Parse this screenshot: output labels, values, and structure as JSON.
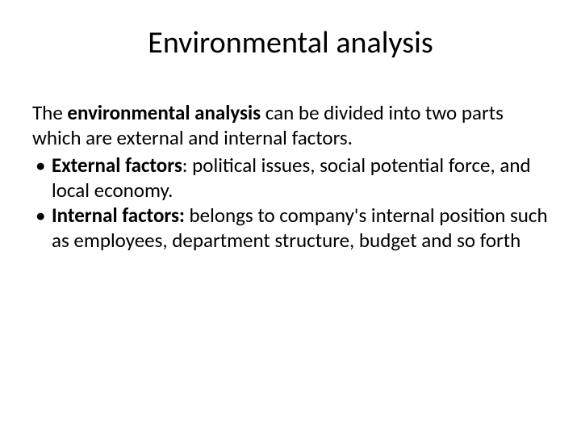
{
  "slide": {
    "title": "Environmental analysis",
    "intro_prefix": "The ",
    "intro_bold": "environmental analysis",
    "intro_suffix": " can be divided into two parts which are external and internal factors.",
    "bullets": [
      {
        "label": "External factors",
        "separator": ": ",
        "text": "political issues, social potential force, and local economy."
      },
      {
        "label": "Internal factors:",
        "separator": " ",
        "text": "belongs to company's internal position such as employees, department structure, budget and so forth"
      }
    ]
  },
  "style": {
    "background_color": "#ffffff",
    "text_color": "#000000",
    "title_fontsize": 38,
    "body_fontsize": 25,
    "font_family": "Calibri, 'Segoe UI', Arial, sans-serif"
  }
}
